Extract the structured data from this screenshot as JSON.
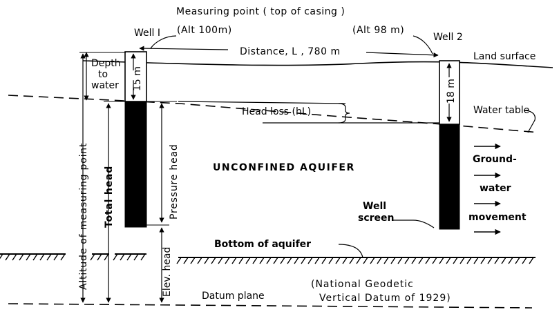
{
  "labels": {
    "measuring_point": "Measuring point ( top of casing )",
    "well1": "Well I",
    "well2": "Well 2",
    "alt1": "(Alt 100m)",
    "alt2": "(Alt 98 m)",
    "distance": "Distance, L , 780 m",
    "land_surface": "Land surface",
    "depth_line1": "Depth",
    "depth_line2": "to",
    "depth_line3": "water",
    "depth1_value": "15 m",
    "depth2_value": "18 m",
    "head_loss": "Head loss (hL)",
    "water_table": "Water table",
    "altitude_measuring_point": "Altitude of measuring point",
    "total_head": "Total head",
    "pressure_head": "Pressure head",
    "elev_head": "Elev. head",
    "aquifer": "UNCONFINED AQUIFER",
    "groundwater_1": "Ground-",
    "groundwater_2": "water",
    "groundwater_3": "movement",
    "well_screen_1": "Well",
    "well_screen_2": "screen",
    "bottom_aquifer": "Bottom of aquifer",
    "datum_plane": "Datum plane",
    "ngvd_1": "(National Geodetic",
    "ngvd_2": "Vertical Datum of 1929)"
  }
}
